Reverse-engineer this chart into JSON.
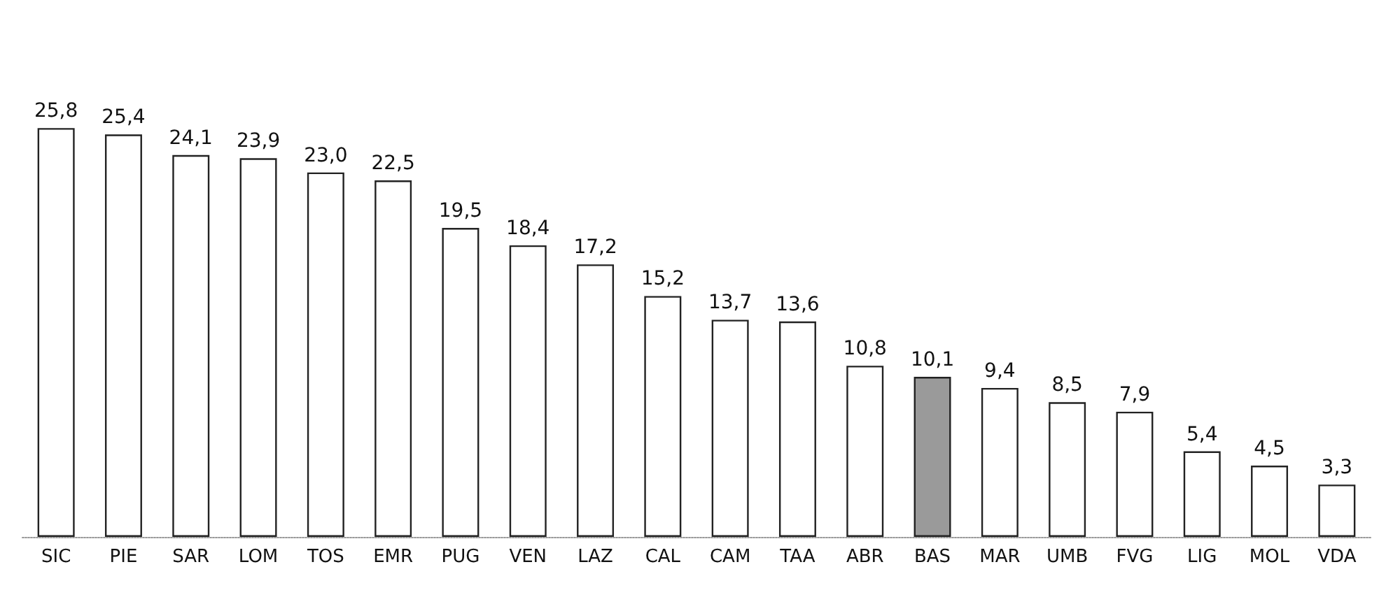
{
  "chart_data": {
    "type": "bar",
    "categories": [
      "SIC",
      "PIE",
      "SAR",
      "LOM",
      "TOS",
      "EMR",
      "PUG",
      "VEN",
      "LAZ",
      "CAL",
      "CAM",
      "TAA",
      "ABR",
      "BAS",
      "MAR",
      "UMB",
      "FVG",
      "LIG",
      "MOL",
      "VDA"
    ],
    "values": [
      25.8,
      25.4,
      24.1,
      23.9,
      23.0,
      22.5,
      19.5,
      18.4,
      17.2,
      15.2,
      13.7,
      13.6,
      10.8,
      10.1,
      9.4,
      8.5,
      7.9,
      5.4,
      4.5,
      3.3
    ],
    "value_labels": [
      "25,8",
      "25,4",
      "24,1",
      "23,9",
      "23,0",
      "22,5",
      "19,5",
      "18,4",
      "17,2",
      "15,2",
      "13,7",
      "13,6",
      "10,8",
      "10,1",
      "9,4",
      "8,5",
      "7,9",
      "5,4",
      "4,5",
      "3,3"
    ],
    "colors": [
      "#ffffff",
      "#ffffff",
      "#ffffff",
      "#ffffff",
      "#ffffff",
      "#ffffff",
      "#ffffff",
      "#ffffff",
      "#ffffff",
      "#ffffff",
      "#ffffff",
      "#ffffff",
      "#ffffff",
      "#9a9a9a",
      "#ffffff",
      "#ffffff",
      "#ffffff",
      "#ffffff",
      "#ffffff",
      "#ffffff"
    ]
  }
}
